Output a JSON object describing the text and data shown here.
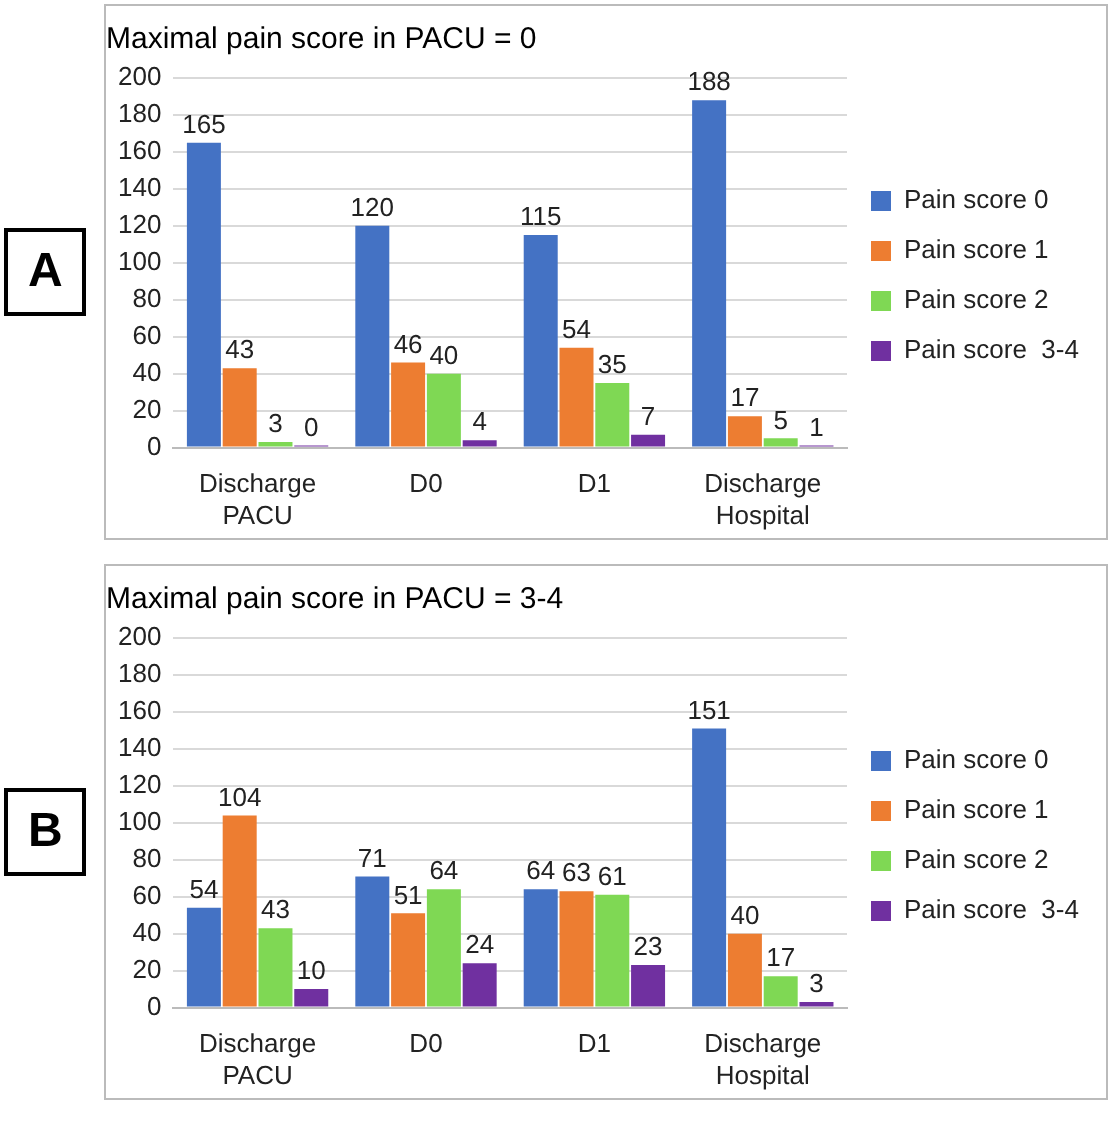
{
  "chart_data": [
    {
      "type": "bar",
      "title": "Maximal pain score in PACU = 0",
      "categories": [
        "Discharge PACU",
        "D0",
        "D1",
        "Discharge Hospital"
      ],
      "series": [
        {
          "name": "Pain score 0",
          "color": "#4472c4",
          "values": [
            165,
            120,
            115,
            188
          ]
        },
        {
          "name": "Pain score 1",
          "color": "#ed7d31",
          "values": [
            43,
            46,
            54,
            17
          ]
        },
        {
          "name": "Pain score 2",
          "color": "#7fd854",
          "values": [
            3,
            40,
            35,
            5
          ]
        },
        {
          "name": "Pain score  3-4",
          "color": "#7030a0",
          "values": [
            0,
            4,
            7,
            1
          ]
        }
      ],
      "ylim": [
        0,
        200
      ],
      "yticks": [
        0,
        20,
        40,
        60,
        80,
        100,
        120,
        140,
        160,
        180,
        200
      ],
      "grid": "y",
      "legend": "right",
      "data_labels": true,
      "annotations": [
        "A"
      ]
    },
    {
      "type": "bar",
      "title": "Maximal pain score in PACU = 3-4",
      "categories": [
        "Discharge PACU",
        "D0",
        "D1",
        "Discharge Hospital"
      ],
      "series": [
        {
          "name": "Pain score 0",
          "color": "#4472c4",
          "values": [
            54,
            71,
            64,
            151
          ]
        },
        {
          "name": "Pain score 1",
          "color": "#ed7d31",
          "values": [
            104,
            51,
            63,
            40
          ]
        },
        {
          "name": "Pain score 2",
          "color": "#7fd854",
          "values": [
            43,
            64,
            61,
            17
          ]
        },
        {
          "name": "Pain score  3-4",
          "color": "#7030a0",
          "values": [
            10,
            24,
            23,
            3
          ]
        }
      ],
      "ylim": [
        0,
        200
      ],
      "yticks": [
        0,
        20,
        40,
        60,
        80,
        100,
        120,
        140,
        160,
        180,
        200
      ],
      "grid": "y",
      "legend": "right",
      "data_labels": true,
      "annotations": [
        "B"
      ]
    }
  ]
}
